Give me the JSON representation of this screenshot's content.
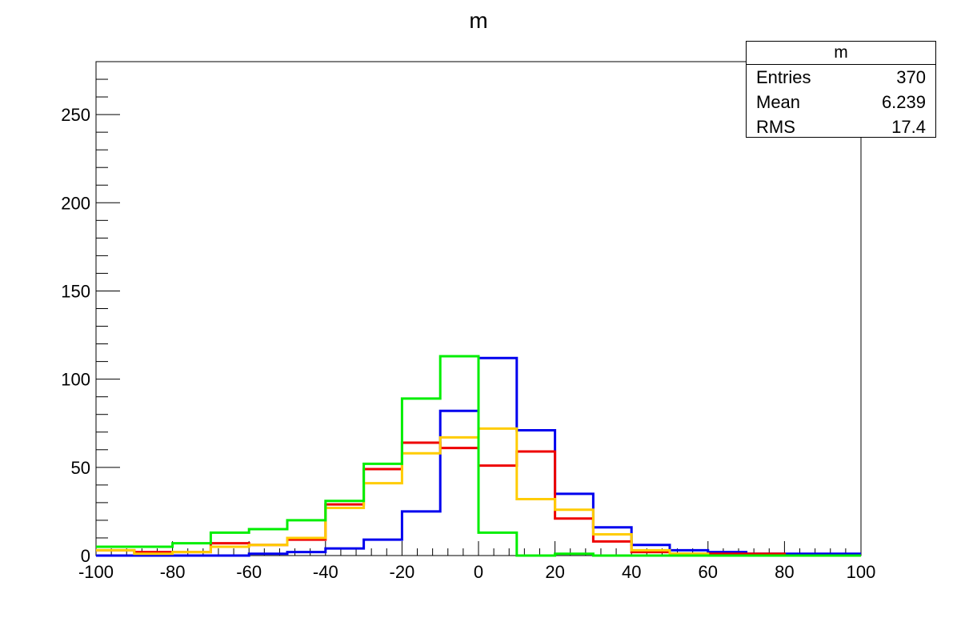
{
  "chart_data": {
    "type": "histogram",
    "title": "m",
    "xlim": [
      -100,
      100
    ],
    "ylim": [
      0,
      280
    ],
    "x_ticks": [
      -100,
      -80,
      -60,
      -40,
      -20,
      0,
      20,
      40,
      60,
      80,
      100
    ],
    "y_ticks": [
      0,
      50,
      100,
      150,
      200,
      250
    ],
    "bin_edges": [
      -100,
      -90,
      -80,
      -70,
      -60,
      -50,
      -40,
      -30,
      -20,
      -10,
      0,
      10,
      20,
      30,
      40,
      50,
      60,
      70,
      80,
      90,
      100
    ],
    "series": [
      {
        "color": "#0000ee",
        "values": [
          0,
          0,
          0,
          0,
          1,
          2,
          4,
          9,
          25,
          82,
          112,
          71,
          35,
          16,
          6,
          3,
          2,
          1,
          1,
          1
        ]
      },
      {
        "color": "#ee0000",
        "values": [
          3,
          2,
          2,
          7,
          6,
          9,
          29,
          49,
          64,
          61,
          51,
          59,
          21,
          8,
          2,
          1,
          1,
          1,
          0,
          0
        ]
      },
      {
        "color": "#ffcc00",
        "values": [
          3,
          1,
          2,
          5,
          6,
          10,
          27,
          41,
          58,
          67,
          72,
          32,
          26,
          12,
          3,
          1,
          0,
          0,
          0,
          0
        ]
      },
      {
        "color": "#00ee00",
        "values": [
          5,
          5,
          7,
          13,
          15,
          20,
          31,
          52,
          89,
          113,
          13,
          0,
          1,
          0,
          0,
          0,
          0,
          0,
          0,
          0
        ]
      }
    ]
  },
  "stats": {
    "title": "m",
    "rows": [
      {
        "label": "Entries",
        "value": "370"
      },
      {
        "label": "Mean",
        "value": "6.239"
      },
      {
        "label": "RMS",
        "value": "17.4"
      }
    ]
  }
}
